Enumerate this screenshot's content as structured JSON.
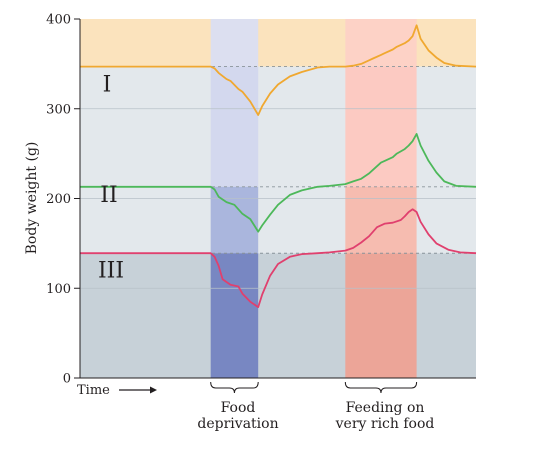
{
  "chart_data": {
    "type": "line",
    "ylabel": "Body weight (g)",
    "xlabel": "Time",
    "ylim": [
      0,
      400
    ],
    "yticks": [
      0,
      100,
      200,
      300,
      400
    ],
    "xlim": [
      0,
      100
    ],
    "grid": true,
    "periods": [
      {
        "name": "food-deprivation",
        "label_lines": [
          "Food",
          "deprivation"
        ],
        "start": 33,
        "end": 45,
        "color": "#7c86c4"
      },
      {
        "name": "rich-food",
        "label_lines": [
          "Feeding on",
          "very rich food"
        ],
        "start": 67,
        "end": 85,
        "color": "#f08a7c"
      }
    ],
    "series": [
      {
        "name": "I",
        "color": "#f0a830",
        "fill": "#fbe3bd",
        "baseline": 347,
        "x": [
          0,
          33,
          34,
          35,
          37,
          38,
          40,
          41,
          43,
          45,
          46,
          48,
          50,
          53,
          56,
          60,
          63,
          67,
          69,
          71,
          73,
          74,
          76,
          77,
          79,
          80,
          82,
          83,
          84,
          85,
          86,
          88,
          90,
          92,
          95,
          100
        ],
        "values": [
          347,
          347,
          345,
          340,
          333,
          331,
          322,
          319,
          308,
          293,
          303,
          317,
          327,
          336,
          341,
          346,
          347,
          347,
          348,
          350,
          354,
          356,
          360,
          362,
          366,
          369,
          373,
          376,
          381,
          393,
          378,
          365,
          357,
          351,
          348,
          347
        ]
      },
      {
        "name": "II",
        "color": "#4db85a",
        "baseline": 213,
        "x": [
          0,
          33,
          34,
          35,
          37,
          39,
          41,
          43,
          45,
          46,
          48,
          50,
          53,
          56,
          60,
          63,
          67,
          69,
          71,
          73,
          74,
          76,
          77,
          79,
          80,
          82,
          83,
          84,
          85,
          86,
          88,
          90,
          92,
          95,
          100
        ],
        "values": [
          213,
          213,
          210,
          202,
          196,
          193,
          183,
          177,
          163,
          170,
          182,
          193,
          204,
          209,
          213,
          214,
          216,
          219,
          222,
          228,
          232,
          240,
          242,
          246,
          250,
          255,
          259,
          264,
          272,
          259,
          242,
          229,
          219,
          214,
          213
        ]
      },
      {
        "name": "III",
        "color": "#e0406e",
        "baseline": 139,
        "x": [
          0,
          33,
          34,
          35,
          36,
          37,
          38,
          40,
          41,
          43,
          45,
          46,
          48,
          50,
          53,
          56,
          60,
          63,
          67,
          69,
          71,
          73,
          75,
          77,
          79,
          81,
          82,
          83,
          84,
          85,
          86,
          88,
          90,
          93,
          96,
          100
        ],
        "values": [
          139,
          139,
          135,
          125,
          110,
          107,
          104,
          102,
          94,
          85,
          79,
          93,
          114,
          127,
          135,
          138,
          139,
          140,
          142,
          145,
          151,
          158,
          168,
          172,
          173,
          176,
          180,
          185,
          188,
          185,
          174,
          160,
          150,
          143,
          140,
          139
        ]
      }
    ],
    "roman_labels": [
      "I",
      "II",
      "III"
    ]
  }
}
